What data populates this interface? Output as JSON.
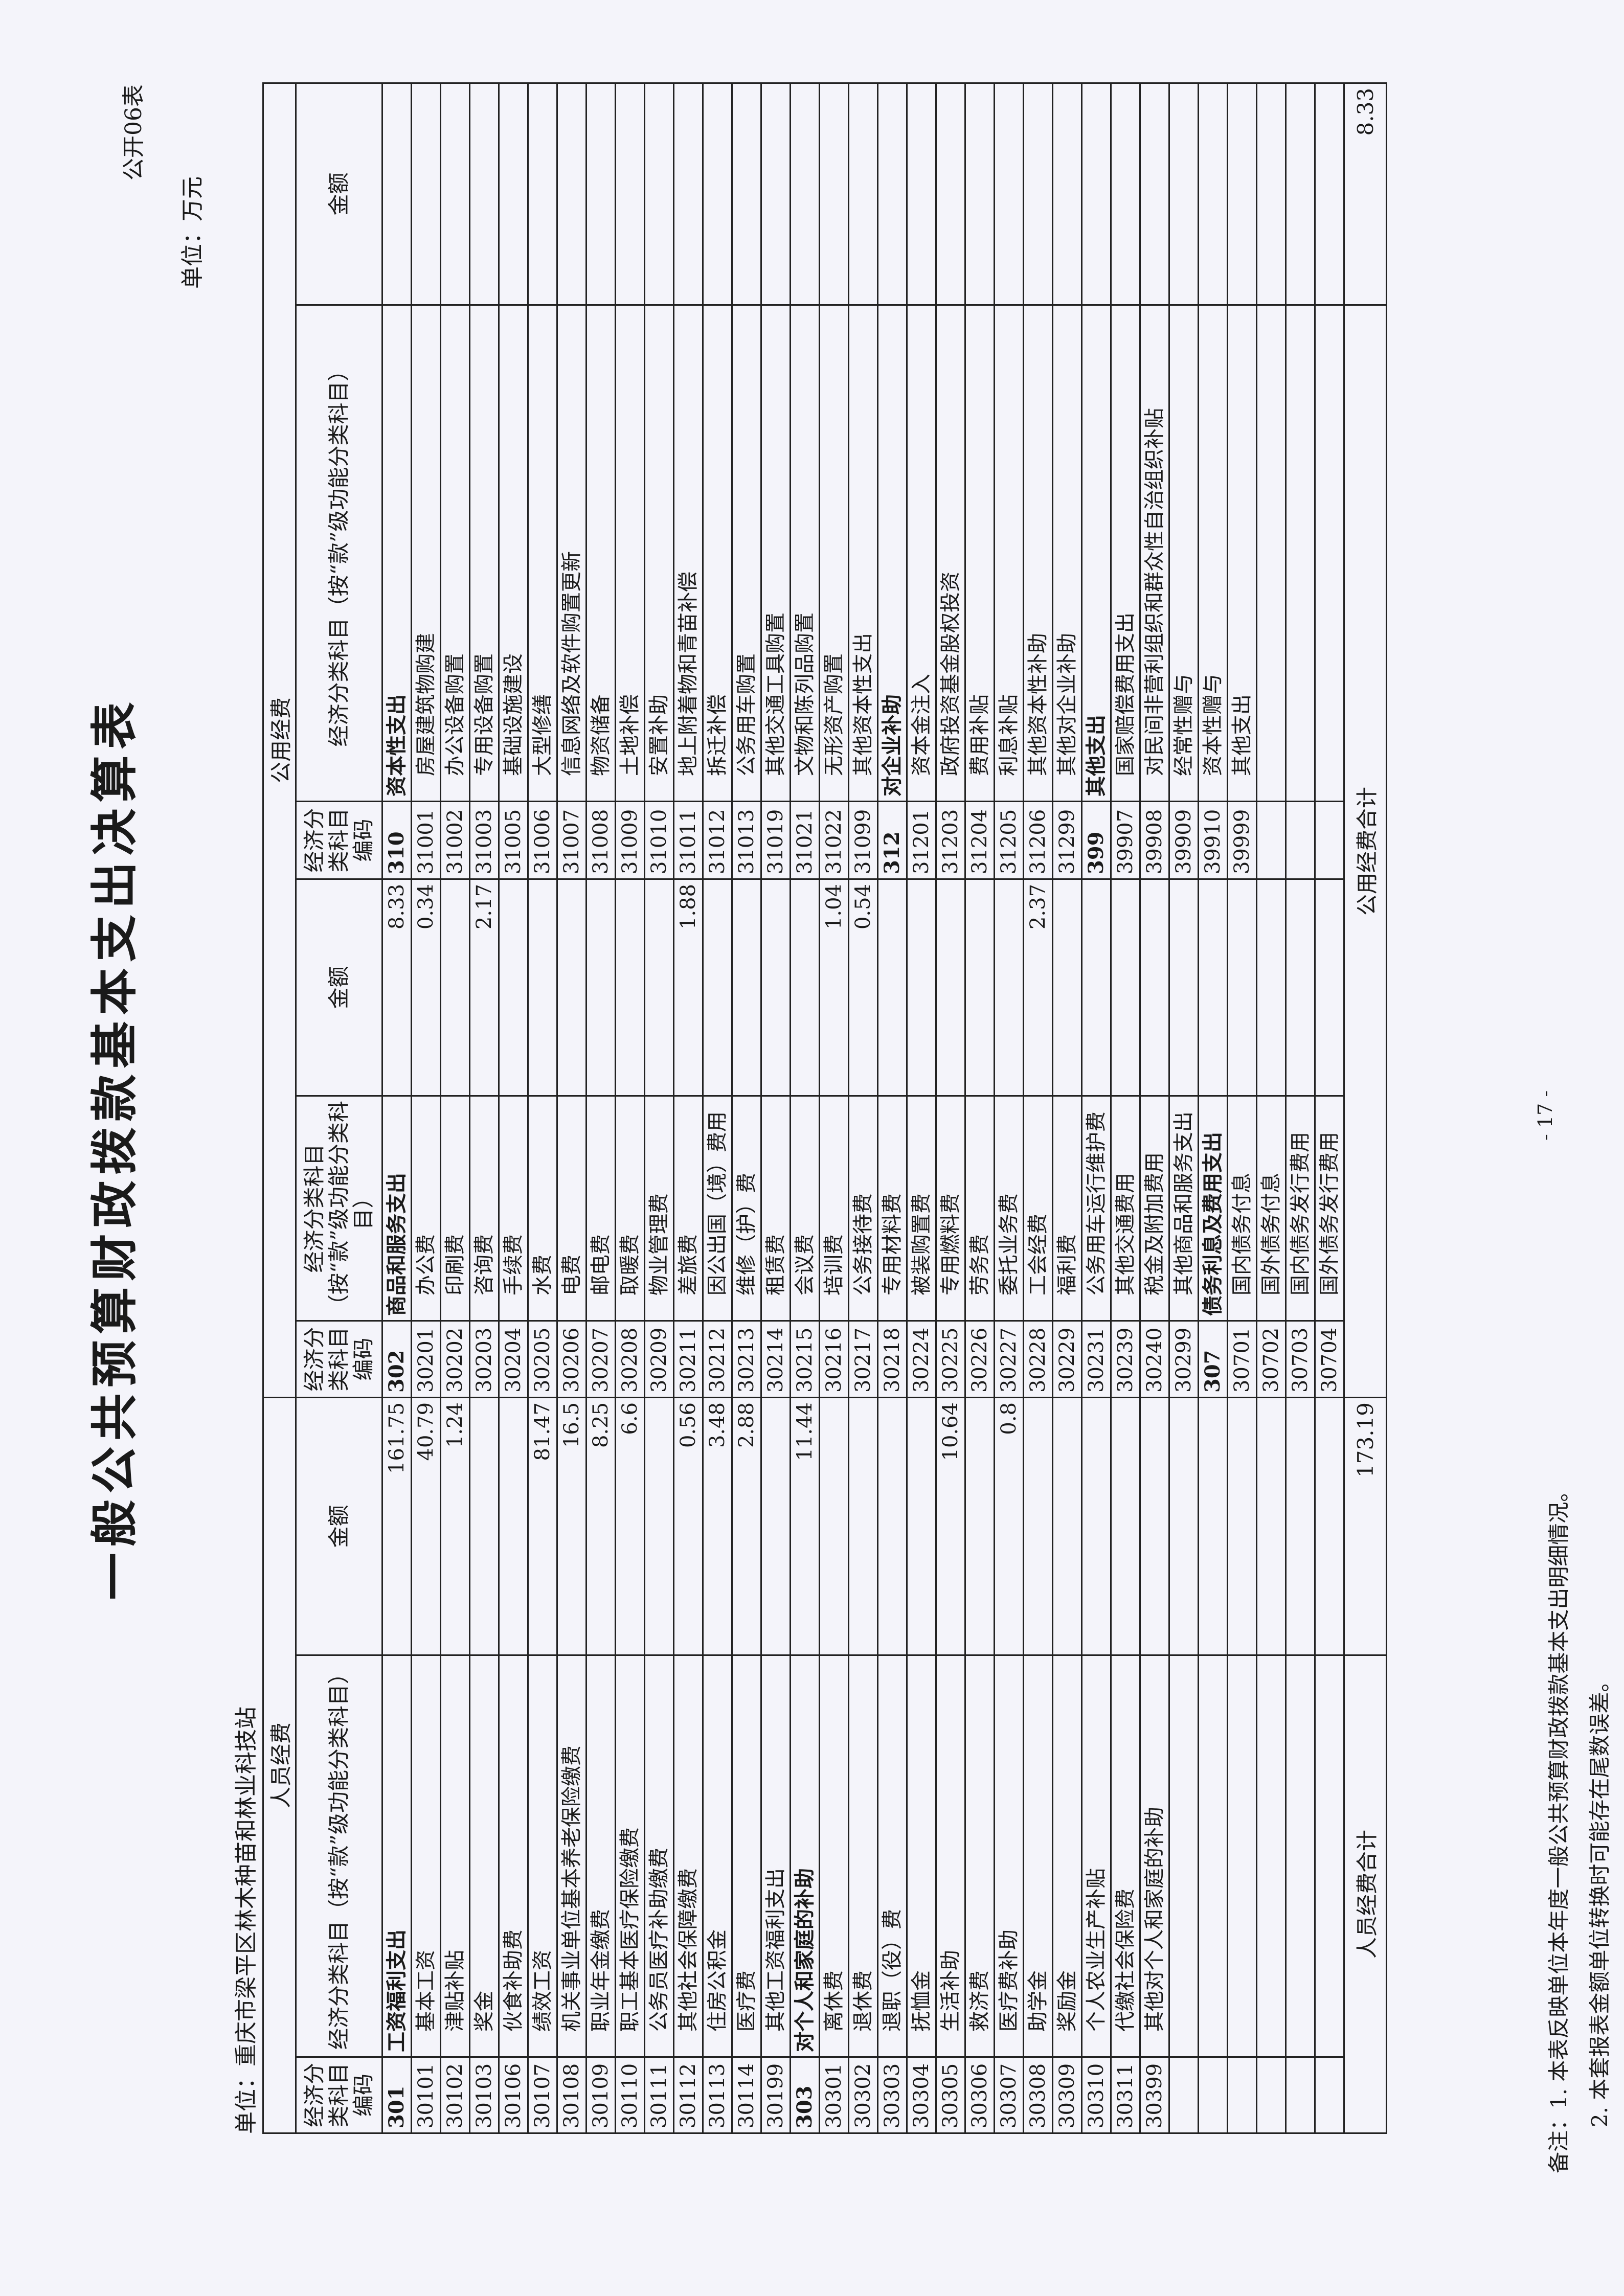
{
  "form_no": "公开06表",
  "title": "一般公共预算财政拨款基本支出决算表",
  "unit_org": "单位：重庆市梁平区林木种苗和林业科技站",
  "unit_money": "单位：万元",
  "headers": {
    "personnel_group": "人员经费",
    "public_group": "公用经费",
    "code": "经济分类科目编码",
    "name": "经济分类科目（按“款”级功能分类科目）",
    "amount": "金额"
  },
  "rows": [
    [
      [
        "301",
        "工资福利支出",
        "161.75"
      ],
      [
        "302",
        "商品和服务支出",
        "8.33"
      ],
      [
        "310",
        "资本性支出",
        ""
      ]
    ],
    [
      [
        "30101",
        "基本工资",
        "40.79"
      ],
      [
        "30201",
        "办公费",
        "0.34"
      ],
      [
        "31001",
        "房屋建筑物购建",
        ""
      ]
    ],
    [
      [
        "30102",
        "津贴补贴",
        "1.24"
      ],
      [
        "30202",
        "印刷费",
        ""
      ],
      [
        "31002",
        "办公设备购置",
        ""
      ]
    ],
    [
      [
        "30103",
        "奖金",
        ""
      ],
      [
        "30203",
        "咨询费",
        "2.17"
      ],
      [
        "31003",
        "专用设备购置",
        ""
      ]
    ],
    [
      [
        "30106",
        "伙食补助费",
        ""
      ],
      [
        "30204",
        "手续费",
        ""
      ],
      [
        "31005",
        "基础设施建设",
        ""
      ]
    ],
    [
      [
        "30107",
        "绩效工资",
        "81.47"
      ],
      [
        "30205",
        "水费",
        ""
      ],
      [
        "31006",
        "大型修缮",
        ""
      ]
    ],
    [
      [
        "30108",
        "机关事业单位基本养老保险缴费",
        "16.5"
      ],
      [
        "30206",
        "电费",
        ""
      ],
      [
        "31007",
        "信息网络及软件购置更新",
        ""
      ]
    ],
    [
      [
        "30109",
        "职业年金缴费",
        "8.25"
      ],
      [
        "30207",
        "邮电费",
        ""
      ],
      [
        "31008",
        "物资储备",
        ""
      ]
    ],
    [
      [
        "30110",
        "职工基本医疗保险缴费",
        "6.6"
      ],
      [
        "30208",
        "取暖费",
        ""
      ],
      [
        "31009",
        "土地补偿",
        ""
      ]
    ],
    [
      [
        "30111",
        "公务员医疗补助缴费",
        ""
      ],
      [
        "30209",
        "物业管理费",
        ""
      ],
      [
        "31010",
        "安置补助",
        ""
      ]
    ],
    [
      [
        "30112",
        "其他社会保障缴费",
        "0.56"
      ],
      [
        "30211",
        "差旅费",
        "1.88"
      ],
      [
        "31011",
        "地上附着物和青苗补偿",
        ""
      ]
    ],
    [
      [
        "30113",
        "住房公积金",
        "3.48"
      ],
      [
        "30212",
        "因公出国（境）费用",
        ""
      ],
      [
        "31012",
        "拆迁补偿",
        ""
      ]
    ],
    [
      [
        "30114",
        "医疗费",
        "2.88"
      ],
      [
        "30213",
        "维修（护）费",
        ""
      ],
      [
        "31013",
        "公务用车购置",
        ""
      ]
    ],
    [
      [
        "30199",
        "其他工资福利支出",
        ""
      ],
      [
        "30214",
        "租赁费",
        ""
      ],
      [
        "31019",
        "其他交通工具购置",
        ""
      ]
    ],
    [
      [
        "303",
        "对个人和家庭的补助",
        "11.44"
      ],
      [
        "30215",
        "会议费",
        ""
      ],
      [
        "31021",
        "文物和陈列品购置",
        ""
      ]
    ],
    [
      [
        "30301",
        "离休费",
        ""
      ],
      [
        "30216",
        "培训费",
        "1.04"
      ],
      [
        "31022",
        "无形资产购置",
        ""
      ]
    ],
    [
      [
        "30302",
        "退休费",
        ""
      ],
      [
        "30217",
        "公务接待费",
        "0.54"
      ],
      [
        "31099",
        "其他资本性支出",
        ""
      ]
    ],
    [
      [
        "30303",
        "退职（役）费",
        ""
      ],
      [
        "30218",
        "专用材料费",
        ""
      ],
      [
        "312",
        "对企业补助",
        ""
      ]
    ],
    [
      [
        "30304",
        "抚恤金",
        ""
      ],
      [
        "30224",
        "被装购置费",
        ""
      ],
      [
        "31201",
        "资本金注入",
        ""
      ]
    ],
    [
      [
        "30305",
        "生活补助",
        "10.64"
      ],
      [
        "30225",
        "专用燃料费",
        ""
      ],
      [
        "31203",
        "政府投资基金股权投资",
        ""
      ]
    ],
    [
      [
        "30306",
        "救济费",
        ""
      ],
      [
        "30226",
        "劳务费",
        ""
      ],
      [
        "31204",
        "费用补贴",
        ""
      ]
    ],
    [
      [
        "30307",
        "医疗费补助",
        "0.8"
      ],
      [
        "30227",
        "委托业务费",
        ""
      ],
      [
        "31205",
        "利息补贴",
        ""
      ]
    ],
    [
      [
        "30308",
        "助学金",
        ""
      ],
      [
        "30228",
        "工会经费",
        "2.37"
      ],
      [
        "31206",
        "其他资本性补助",
        ""
      ]
    ],
    [
      [
        "30309",
        "奖励金",
        ""
      ],
      [
        "30229",
        "福利费",
        ""
      ],
      [
        "31299",
        "其他对企业补助",
        ""
      ]
    ],
    [
      [
        "30310",
        "个人农业生产补贴",
        ""
      ],
      [
        "30231",
        "公务用车运行维护费",
        ""
      ],
      [
        "399",
        "其他支出",
        ""
      ]
    ],
    [
      [
        "30311",
        "代缴社会保险费",
        ""
      ],
      [
        "30239",
        "其他交通费用",
        ""
      ],
      [
        "39907",
        "国家赔偿费用支出",
        ""
      ]
    ],
    [
      [
        "30399",
        "其他对个人和家庭的补助",
        ""
      ],
      [
        "30240",
        "税金及附加费用",
        ""
      ],
      [
        "39908",
        "对民间非营利组织和群众性自治组织补贴",
        ""
      ]
    ],
    [
      [
        "",
        "",
        ""
      ],
      [
        "30299",
        "其他商品和服务支出",
        ""
      ],
      [
        "39909",
        "经常性赠与",
        ""
      ]
    ],
    [
      [
        "",
        "",
        ""
      ],
      [
        "307",
        "债务利息及费用支出",
        ""
      ],
      [
        "39910",
        "资本性赠与",
        ""
      ]
    ],
    [
      [
        "",
        "",
        ""
      ],
      [
        "30701",
        "国内债务付息",
        ""
      ],
      [
        "39999",
        "其他支出",
        ""
      ]
    ],
    [
      [
        "",
        "",
        ""
      ],
      [
        "30702",
        "国外债务付息",
        ""
      ],
      [
        "",
        "",
        ""
      ]
    ],
    [
      [
        "",
        "",
        ""
      ],
      [
        "30703",
        "国内债务发行费用",
        ""
      ],
      [
        "",
        "",
        ""
      ]
    ],
    [
      [
        "",
        "",
        ""
      ],
      [
        "30704",
        "国外债务发行费用",
        ""
      ],
      [
        "",
        "",
        ""
      ]
    ]
  ],
  "totals": {
    "personnel_label": "人员经费合计",
    "personnel_value": "173.19",
    "public_label": "公用经费合计",
    "public_value": "8.33"
  },
  "notes": {
    "line1": "备注：1. 本表反映单位本年度一般公共预算财政拨款基本支出明细情况。",
    "line2": "2. 本套报表金额单位转换时可能存在尾数误差。"
  },
  "page_number": "- 17 -"
}
